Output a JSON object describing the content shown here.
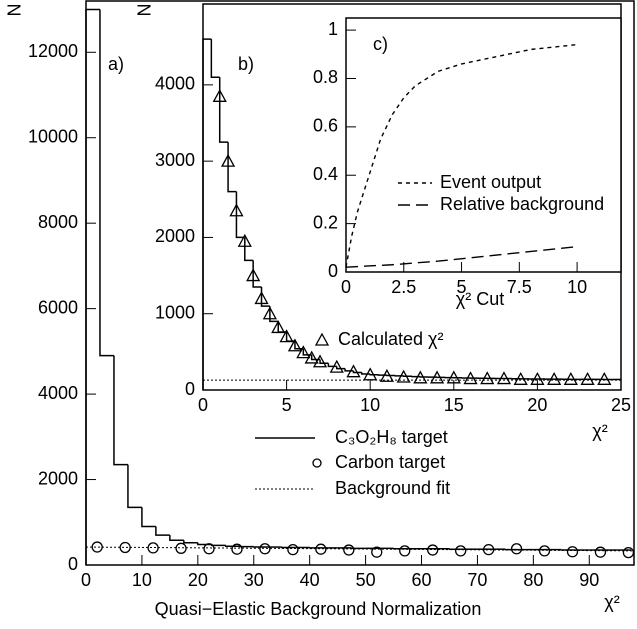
{
  "chart_data": [
    {
      "type": "histogram",
      "label": "a)",
      "ylabel": "N",
      "xlabel": "χ²",
      "title": "Quasi−Elastic Background Normalization",
      "xlim": [
        0,
        98
      ],
      "ylim": [
        0,
        13200
      ],
      "xticks": [
        0,
        10,
        20,
        30,
        40,
        50,
        60,
        70,
        80,
        90
      ],
      "yticks": [
        0,
        2000,
        4000,
        6000,
        8000,
        10000,
        12000
      ],
      "bins": [
        0,
        2.5,
        5,
        7.5,
        10,
        12.5,
        15,
        17.5,
        20,
        22.5,
        25,
        27.5,
        30,
        32.5,
        35,
        37.5,
        40,
        42.5,
        45,
        47.5,
        50,
        52.5,
        55,
        57.5,
        60,
        62.5,
        65,
        67.5,
        70,
        72.5,
        75,
        77.5,
        80,
        82.5,
        85,
        87.5,
        90,
        92.5,
        95,
        97.5
      ],
      "counts": [
        13000,
        4900,
        2350,
        1350,
        900,
        700,
        580,
        520,
        480,
        460,
        440,
        430,
        420,
        420,
        410,
        410,
        400,
        400,
        400,
        390,
        390,
        390,
        380,
        380,
        380,
        380,
        370,
        370,
        370,
        370,
        360,
        360,
        360,
        360,
        350,
        350,
        350,
        350,
        350
      ],
      "hist_name": "C₃O₂H₈ target",
      "points": {
        "name": "Carbon target",
        "marker": "circle",
        "x": [
          2,
          7,
          12,
          17,
          22,
          27,
          32,
          37,
          42,
          47,
          52,
          57,
          62,
          67,
          72,
          77,
          82,
          87,
          92,
          97
        ],
        "values": [
          420,
          410,
          400,
          390,
          380,
          370,
          380,
          360,
          370,
          350,
          300,
          330,
          350,
          330,
          360,
          380,
          330,
          310,
          300,
          290
        ]
      },
      "fit": {
        "name": "Background fit",
        "x": [
          0,
          98
        ],
        "values": [
          420,
          330
        ]
      }
    },
    {
      "type": "histogram",
      "label": "b)",
      "ylabel": "N",
      "xlabel": "χ²",
      "xlim": [
        0,
        25
      ],
      "ylim": [
        0,
        5060
      ],
      "xticks": [
        0,
        5,
        10,
        15,
        20,
        25
      ],
      "yticks": [
        0,
        1000,
        2000,
        3000,
        4000
      ],
      "bins": [
        0,
        0.5,
        1,
        1.5,
        2,
        2.5,
        3,
        3.5,
        4,
        4.5,
        5,
        5.5,
        6,
        6.5,
        7,
        7.5,
        8,
        8.5,
        9,
        9.5,
        10,
        10.5,
        11,
        11.5,
        12,
        12.5,
        13,
        13.5,
        14,
        14.5,
        15,
        15.5,
        16,
        16.5,
        17,
        17.5,
        18,
        18.5,
        19,
        19.5,
        20,
        20.5,
        21,
        21.5,
        22,
        22.5,
        23,
        23.5,
        24,
        24.5,
        25
      ],
      "counts": [
        4600,
        4100,
        3250,
        2600,
        2000,
        1700,
        1350,
        1100,
        900,
        760,
        640,
        540,
        460,
        400,
        350,
        310,
        280,
        250,
        230,
        210,
        200,
        195,
        190,
        185,
        180,
        175,
        170,
        168,
        165,
        162,
        160,
        158,
        156,
        154,
        152,
        150,
        150,
        148,
        146,
        145,
        144,
        143,
        142,
        141,
        140,
        140,
        140,
        139,
        138,
        138
      ],
      "points": {
        "name": "Calculated χ²",
        "marker": "triangle",
        "x": [
          1,
          1.5,
          2,
          2.5,
          3,
          3.5,
          4,
          4.5,
          5,
          5.5,
          6,
          6.5,
          7,
          8,
          9,
          10,
          11,
          12,
          13,
          14,
          15,
          16,
          17,
          18,
          19,
          20,
          21,
          22,
          23,
          24
        ],
        "values": [
          3850,
          3000,
          2350,
          1950,
          1500,
          1200,
          1000,
          820,
          700,
          580,
          490,
          420,
          370,
          300,
          240,
          200,
          180,
          170,
          160,
          160,
          160,
          150,
          150,
          150,
          140,
          140,
          140,
          140,
          140,
          140
        ]
      },
      "fit": {
        "x": [
          0,
          25
        ],
        "values": [
          130,
          130
        ]
      }
    },
    {
      "type": "line",
      "label": "c)",
      "xlabel": "χ² Cut",
      "xlim": [
        0,
        11.9
      ],
      "ylim": [
        0,
        1.05
      ],
      "xticks": [
        0,
        2.5,
        5,
        7.5,
        10
      ],
      "yticks": [
        0,
        0.2,
        0.4,
        0.6,
        0.8,
        1
      ],
      "series": [
        {
          "name": "Event output",
          "dash": "4 4",
          "x": [
            0,
            0.25,
            0.5,
            1,
            1.5,
            2,
            2.5,
            3,
            4,
            5,
            6,
            7,
            8,
            9,
            10
          ],
          "values": [
            0.02,
            0.15,
            0.25,
            0.4,
            0.55,
            0.65,
            0.72,
            0.77,
            0.83,
            0.86,
            0.88,
            0.9,
            0.92,
            0.93,
            0.94
          ]
        },
        {
          "name": "Relative background",
          "dash": "12 6",
          "x": [
            0,
            2,
            4,
            6,
            8,
            10
          ],
          "values": [
            0.02,
            0.03,
            0.045,
            0.065,
            0.085,
            0.105
          ]
        }
      ]
    }
  ]
}
